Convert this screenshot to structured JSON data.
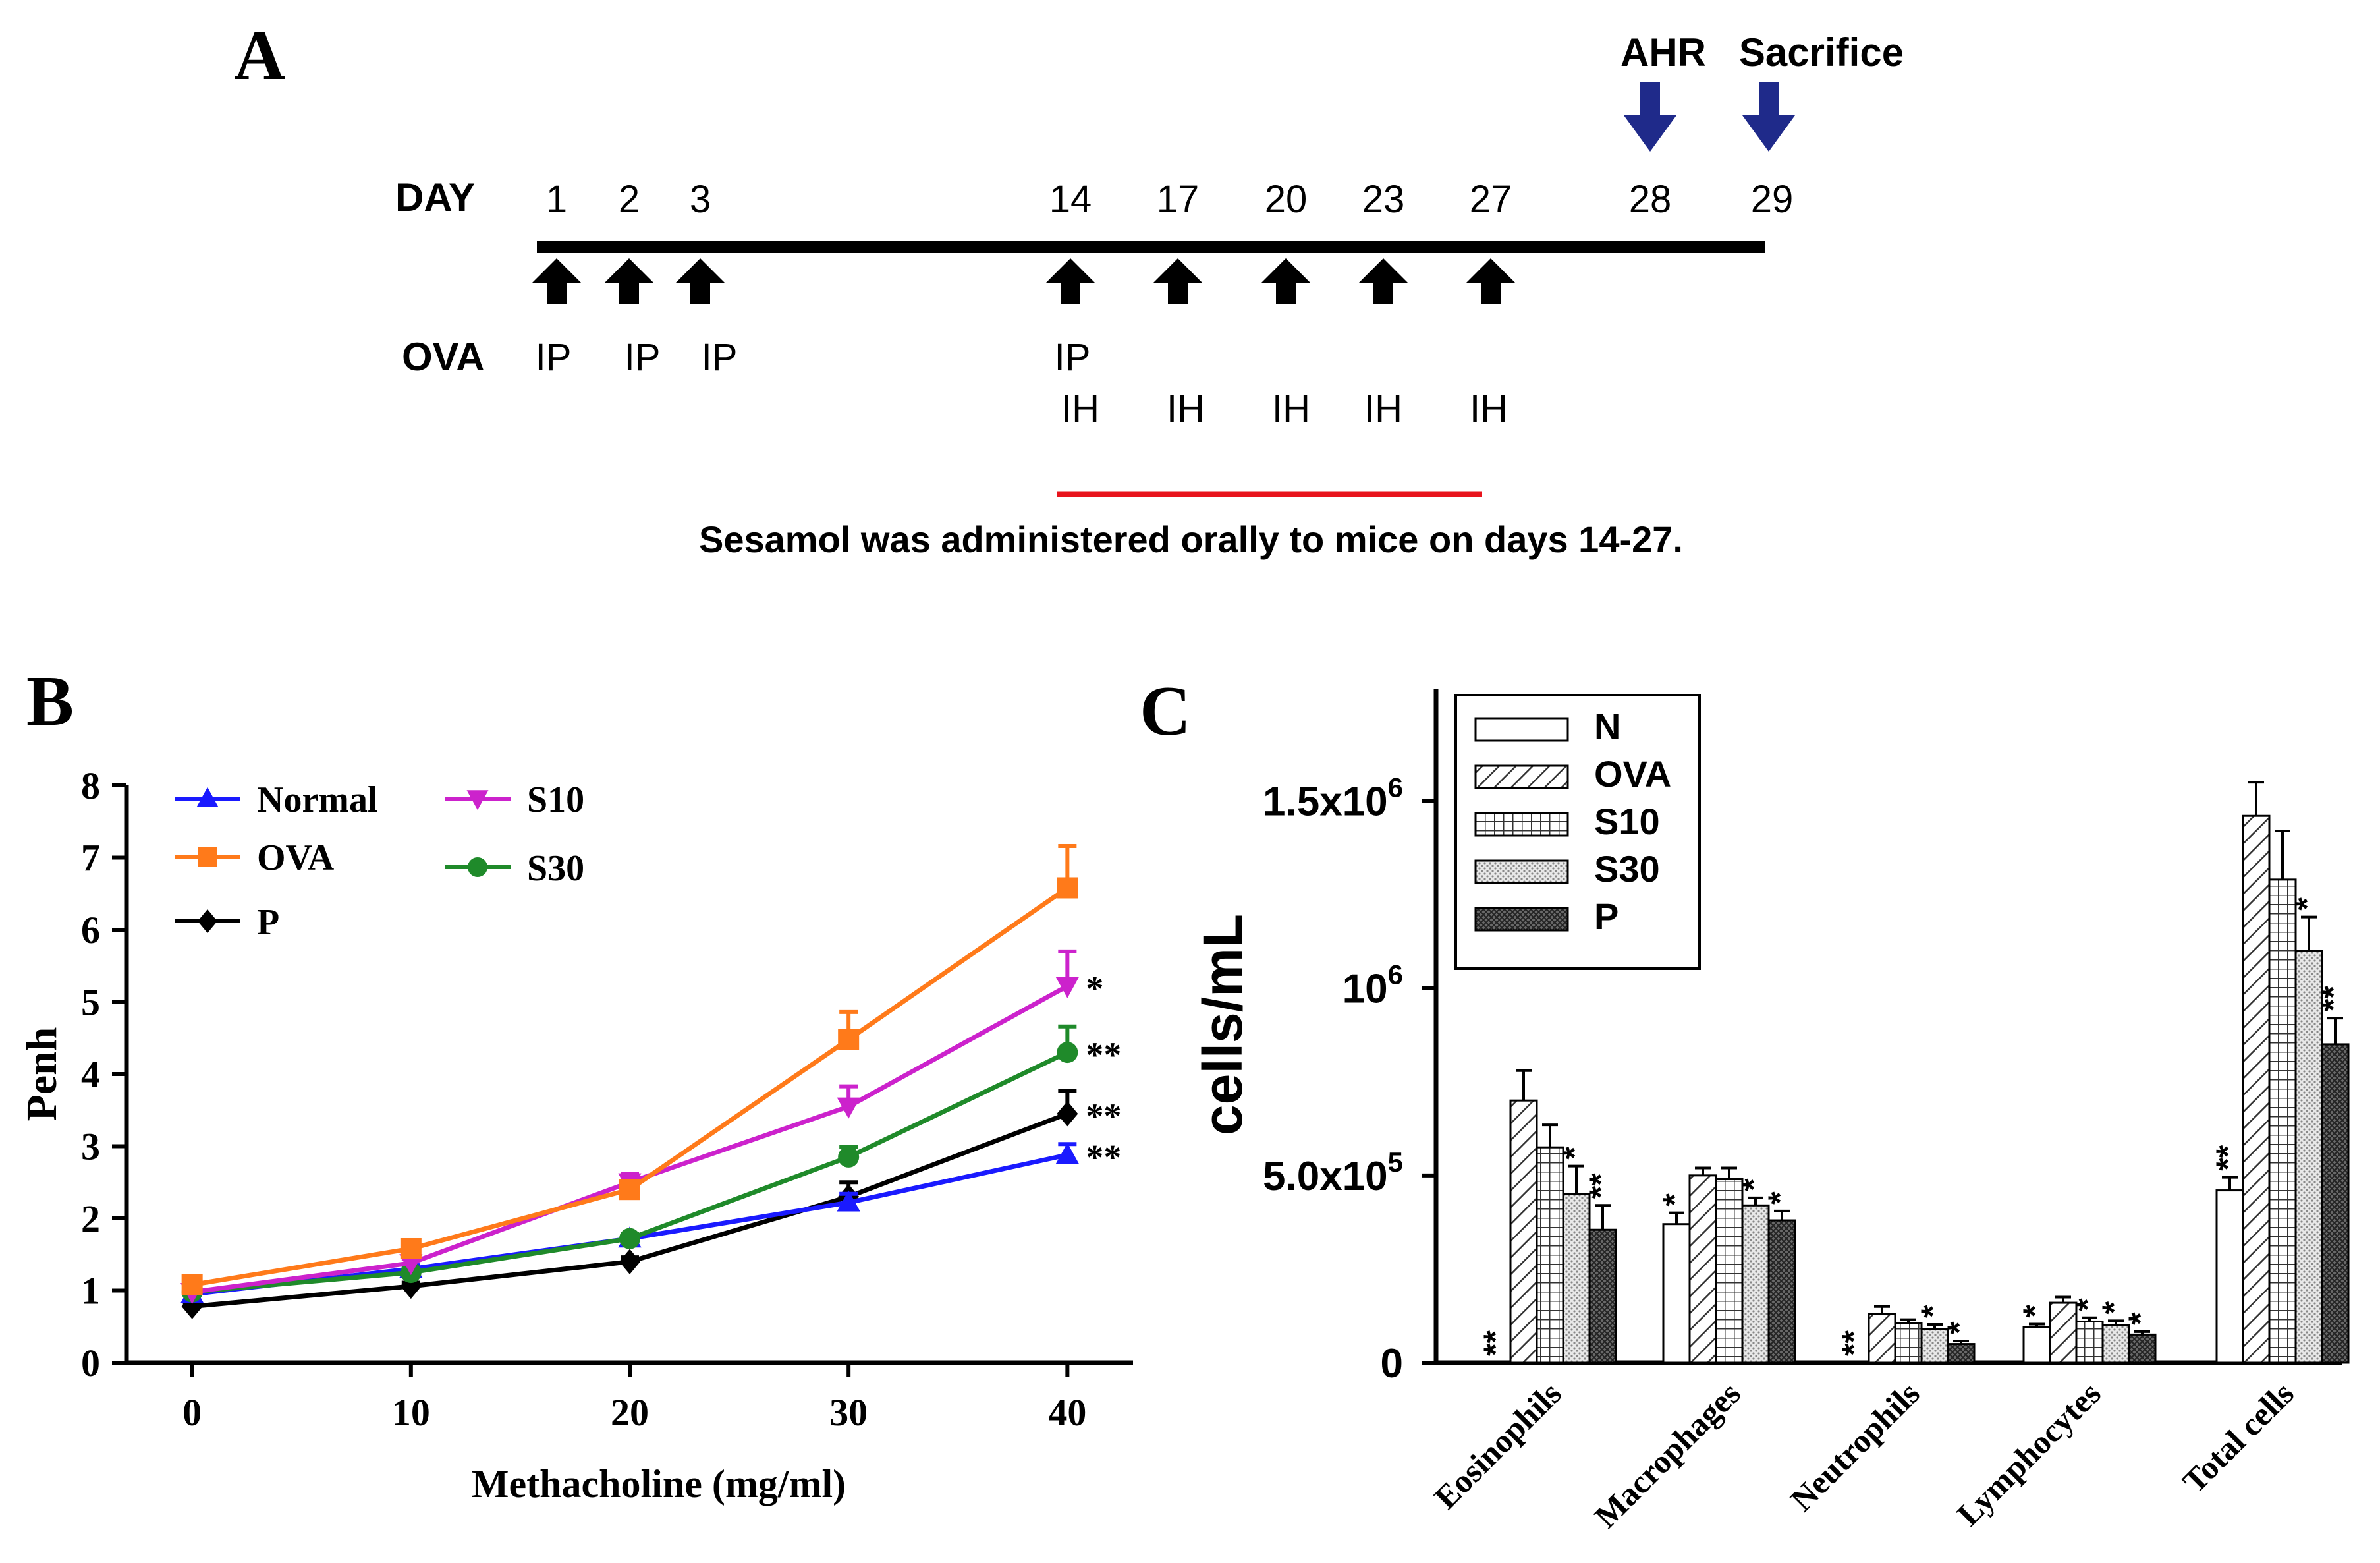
{
  "colors": {
    "navy": "#1f2a8a",
    "red": "#e8141c",
    "normal": "#1a1aff",
    "ova": "#ff7a1a",
    "s10": "#cc22cc",
    "s30": "#1f8a2a",
    "p": "#000000"
  },
  "panel_a": {
    "label": "A",
    "day_label": "DAY",
    "ova_label": "OVA",
    "days": [
      "1",
      "2",
      "3",
      "14",
      "17",
      "20",
      "23",
      "27",
      "28",
      "29"
    ],
    "ip_labels": [
      "IP",
      "IP",
      "IP",
      "IP"
    ],
    "ih_labels": [
      "IH",
      "IH",
      "IH",
      "IH",
      "IH"
    ],
    "ahr_label": "AHR",
    "sacrifice_label": "Sacrifice",
    "note": "Sesamol was administered orally to mice on days 14-27."
  },
  "chart_data": [
    {
      "id": "B",
      "panel_label": "B",
      "type": "line",
      "xlabel": "Methacholine (mg/ml)",
      "ylabel": "Penh",
      "x": [
        0,
        10,
        20,
        30,
        40
      ],
      "x_ticks": [
        "0",
        "10",
        "20",
        "30",
        "40"
      ],
      "xlim": [
        -3,
        43
      ],
      "ylim": [
        0,
        8
      ],
      "y_ticks": [
        "0",
        "1",
        "2",
        "3",
        "4",
        "5",
        "6",
        "7",
        "8"
      ],
      "legend_position": "top-left",
      "series": [
        {
          "name": "Normal",
          "key": "normal",
          "marker": "triangle-up",
          "values": [
            0.95,
            1.3,
            1.72,
            2.22,
            2.88
          ],
          "errors": [
            0.05,
            0.05,
            0.06,
            0.12,
            0.15
          ],
          "annotation": "**"
        },
        {
          "name": "OVA",
          "key": "ova",
          "marker": "square",
          "values": [
            1.08,
            1.58,
            2.4,
            4.48,
            6.58
          ],
          "errors": [
            0.06,
            0.07,
            0.1,
            0.38,
            0.58
          ],
          "annotation": ""
        },
        {
          "name": "P",
          "key": "p",
          "marker": "diamond",
          "values": [
            0.78,
            1.06,
            1.4,
            2.3,
            3.45
          ],
          "errors": [
            0.04,
            0.05,
            0.06,
            0.2,
            0.32
          ],
          "annotation": "**"
        },
        {
          "name": "S10",
          "key": "s10",
          "marker": "triangle-down",
          "values": [
            0.98,
            1.38,
            2.5,
            3.55,
            5.22
          ],
          "errors": [
            0.05,
            0.06,
            0.12,
            0.28,
            0.48
          ],
          "annotation": "*"
        },
        {
          "name": "S30",
          "key": "s30",
          "marker": "circle",
          "values": [
            0.98,
            1.25,
            1.72,
            2.85,
            4.3
          ],
          "errors": [
            0.04,
            0.05,
            0.07,
            0.14,
            0.36
          ],
          "annotation": "**"
        }
      ]
    },
    {
      "id": "C",
      "panel_label": "C",
      "type": "bar",
      "ylabel": "cells/mL",
      "categories": [
        "Eosinophils",
        "Macrophages",
        "Neutrophils",
        "Lymphocytes",
        "Total cells"
      ],
      "ylim": [
        0,
        1800000
      ],
      "y_ticks": [
        {
          "value": 0,
          "base": "0",
          "exp": ""
        },
        {
          "value": 500000,
          "base": "5.0x10",
          "exp": "5"
        },
        {
          "value": 1000000,
          "base": "10",
          "exp": "6"
        },
        {
          "value": 1500000,
          "base": "1.5x10",
          "exp": "6"
        }
      ],
      "legend_position": "top-left",
      "series": [
        {
          "name": "N",
          "pattern": "plain",
          "values": [
            0,
            370000,
            0,
            95000,
            460000
          ],
          "errors": [
            0,
            30000,
            0,
            8000,
            35000
          ],
          "annotations": [
            "**",
            "*",
            "**",
            "*",
            "**"
          ]
        },
        {
          "name": "OVA",
          "pattern": "diag",
          "values": [
            700000,
            500000,
            130000,
            160000,
            1460000
          ],
          "errors": [
            80000,
            20000,
            20000,
            15000,
            90000
          ],
          "annotations": [
            "",
            "",
            "",
            "",
            ""
          ]
        },
        {
          "name": "S10",
          "pattern": "grid",
          "values": [
            575000,
            490000,
            105000,
            110000,
            1290000
          ],
          "errors": [
            60000,
            30000,
            10000,
            10000,
            130000
          ],
          "annotations": [
            "",
            "",
            "",
            "*",
            ""
          ]
        },
        {
          "name": "S30",
          "pattern": "dots",
          "values": [
            450000,
            420000,
            90000,
            100000,
            1100000
          ],
          "errors": [
            75000,
            20000,
            12000,
            12000,
            90000
          ],
          "annotations": [
            "*",
            "*",
            "*",
            "*",
            "*"
          ]
        },
        {
          "name": "P",
          "pattern": "dense",
          "values": [
            355000,
            380000,
            50000,
            75000,
            850000
          ],
          "errors": [
            65000,
            25000,
            8000,
            8000,
            70000
          ],
          "annotations": [
            "**",
            "*",
            "*",
            "*",
            "**"
          ]
        }
      ]
    }
  ]
}
